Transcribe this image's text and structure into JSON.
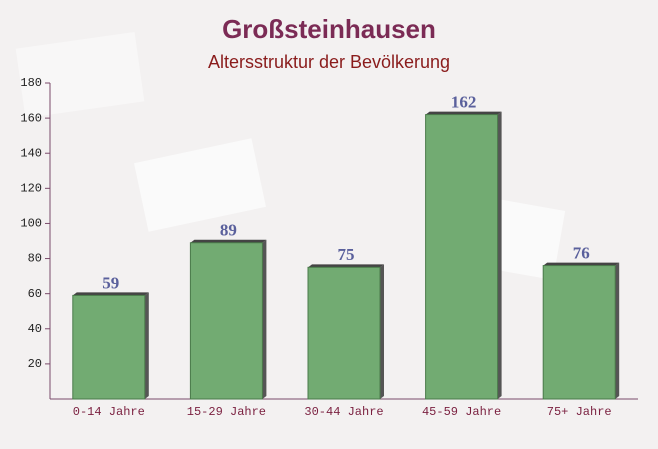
{
  "chart_data": {
    "type": "bar",
    "title": "Großsteinhausen",
    "subtitle": "Altersstruktur der Bevölkerung",
    "categories": [
      "0-14 Jahre",
      "15-29 Jahre",
      "30-44 Jahre",
      "45-59 Jahre",
      "75+ Jahre"
    ],
    "values": [
      59,
      89,
      75,
      162,
      76
    ],
    "color": "#6aa66a",
    "ylim": [
      0,
      180
    ],
    "yticks": [
      20,
      40,
      60,
      80,
      100,
      120,
      140,
      160,
      180
    ],
    "grid": false
  }
}
